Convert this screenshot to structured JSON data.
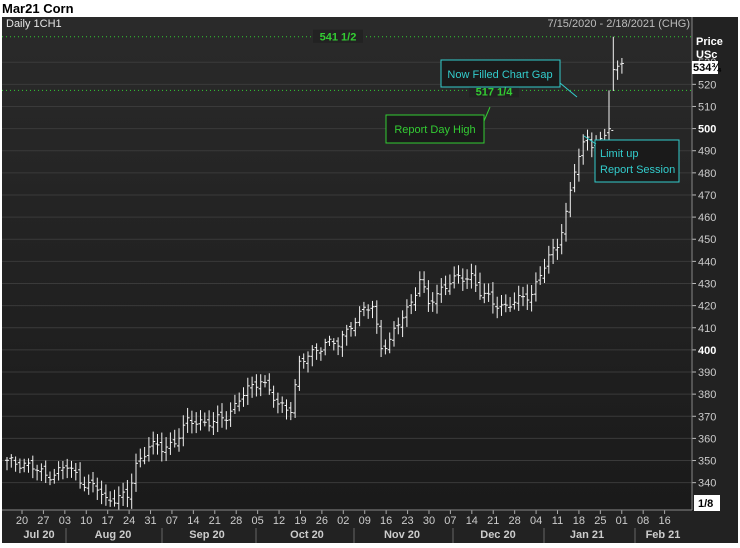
{
  "window_title": "Mar21 Corn",
  "chart_data": {
    "type": "ohlc",
    "symbol_label": "Daily 1CH1",
    "date_range": "7/15/2020 - 2/18/2021 (CHG)",
    "y_axis": {
      "label": "Price",
      "unit": "USc",
      "range": [
        329,
        545
      ],
      "major_ticks": [
        400,
        500
      ]
    },
    "y_ticks": [
      340,
      350,
      360,
      370,
      380,
      390,
      400,
      410,
      420,
      430,
      440,
      450,
      460,
      470,
      480,
      490,
      500,
      510,
      520,
      530
    ],
    "last_price": "534¾",
    "x_tick_labels": [
      "20",
      "27",
      "03",
      "10",
      "17",
      "24",
      "31",
      "07",
      "14",
      "21",
      "28",
      "05",
      "12",
      "19",
      "26",
      "02",
      "09",
      "16",
      "23",
      "30",
      "07",
      "14",
      "21",
      "28",
      "04",
      "11",
      "18",
      "25",
      "01",
      "08",
      "16"
    ],
    "month_labels": [
      "Jul 20",
      "Aug 20",
      "Sep 20",
      "Oct 20",
      "Nov 20",
      "Dec 20",
      "Jan 21",
      "Feb 21"
    ],
    "corner_label": "1/8",
    "reference_lines": [
      {
        "label": "541 1/2",
        "value": 541.5,
        "color": "#33cc33"
      },
      {
        "label": "517 1/4",
        "value": 517.25,
        "color": "#33cc33"
      }
    ],
    "annotations": [
      {
        "text": "Now Filled Chart Gap",
        "color": "#33cccc"
      },
      {
        "text": "Report Day High",
        "color": "#33cc33"
      },
      {
        "lines": [
          "Limit up",
          "Report Session"
        ],
        "color": "#33cccc"
      }
    ],
    "anchors": [
      [
        0,
        349
      ],
      [
        4,
        349
      ],
      [
        9,
        343
      ],
      [
        14,
        347
      ],
      [
        18,
        340
      ],
      [
        21,
        337
      ],
      [
        23,
        332
      ],
      [
        26,
        334
      ],
      [
        28,
        333
      ],
      [
        30,
        348
      ],
      [
        33,
        357
      ],
      [
        36,
        355
      ],
      [
        39,
        359
      ],
      [
        42,
        367
      ],
      [
        45,
        368
      ],
      [
        48,
        367
      ],
      [
        51,
        370
      ],
      [
        54,
        378
      ],
      [
        57,
        383
      ],
      [
        59,
        387
      ],
      [
        61,
        382
      ],
      [
        63,
        374
      ],
      [
        66,
        374
      ],
      [
        68,
        394
      ],
      [
        71,
        398
      ],
      [
        74,
        404
      ],
      [
        77,
        402
      ],
      [
        80,
        412
      ],
      [
        83,
        418
      ],
      [
        85,
        419
      ],
      [
        87,
        402
      ],
      [
        89,
        404
      ],
      [
        92,
        415
      ],
      [
        94,
        422
      ],
      [
        96,
        432
      ],
      [
        98,
        420
      ],
      [
        101,
        428
      ],
      [
        103,
        431
      ],
      [
        106,
        432
      ],
      [
        108,
        434
      ],
      [
        110,
        426
      ],
      [
        113,
        421
      ],
      [
        116,
        420
      ],
      [
        119,
        422
      ],
      [
        122,
        426
      ],
      [
        124,
        434
      ],
      [
        126,
        441
      ],
      [
        128,
        448
      ],
      [
        130,
        462
      ],
      [
        132,
        481
      ],
      [
        134,
        492
      ],
      [
        135,
        497
      ],
      [
        136,
        494
      ],
      [
        138,
        494
      ],
      [
        139,
        497
      ],
      [
        140,
        500
      ],
      [
        141,
        525
      ],
      [
        142,
        528
      ],
      [
        143,
        532
      ]
    ]
  }
}
